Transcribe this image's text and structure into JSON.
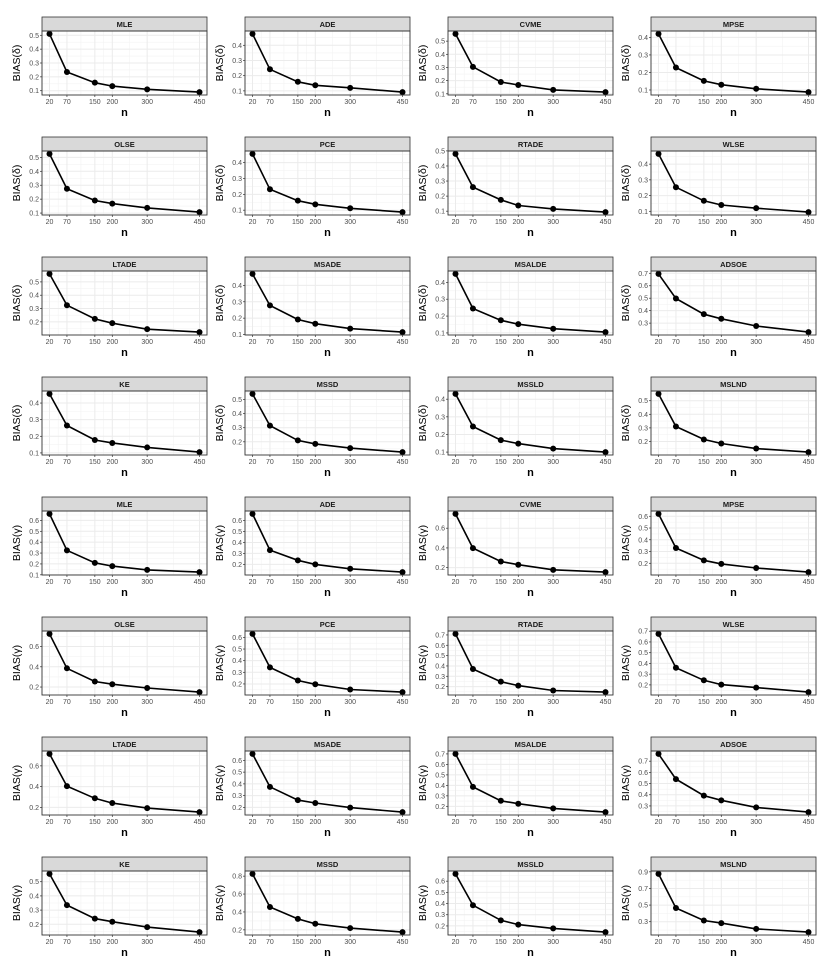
{
  "chart_data": {
    "type": "line",
    "layout": "facet-grid",
    "xlabel": "n",
    "x": [
      20,
      70,
      150,
      200,
      300,
      450
    ],
    "xticks": [
      20,
      70,
      150,
      200,
      300,
      450
    ],
    "grid": true,
    "panels": [
      {
        "title": "MLE",
        "ylabel": "BIAS(δ)",
        "yticks": [
          0.1,
          0.2,
          0.3,
          0.4,
          0.5
        ],
        "values": [
          0.51,
          0.235,
          0.158,
          0.133,
          0.11,
          0.09
        ]
      },
      {
        "title": "ADE",
        "ylabel": "BIAS(δ)",
        "yticks": [
          0.1,
          0.2,
          0.3,
          0.4
        ],
        "values": [
          0.475,
          0.242,
          0.16,
          0.137,
          0.12,
          0.092
        ]
      },
      {
        "title": "CVME",
        "ylabel": "BIAS(δ)",
        "yticks": [
          0.1,
          0.2,
          0.3,
          0.4,
          0.5
        ],
        "values": [
          0.555,
          0.305,
          0.19,
          0.167,
          0.13,
          0.113
        ]
      },
      {
        "title": "MPSE",
        "ylabel": "BIAS(δ)",
        "yticks": [
          0.1,
          0.2,
          0.3,
          0.4
        ],
        "values": [
          0.42,
          0.228,
          0.152,
          0.13,
          0.107,
          0.088
        ]
      },
      {
        "title": "OLSE",
        "ylabel": "BIAS(δ)",
        "yticks": [
          0.1,
          0.2,
          0.3,
          0.4,
          0.5
        ],
        "values": [
          0.525,
          0.275,
          0.19,
          0.168,
          0.137,
          0.107
        ]
      },
      {
        "title": "PCE",
        "ylabel": "BIAS(δ)",
        "yticks": [
          0.1,
          0.2,
          0.3,
          0.4
        ],
        "values": [
          0.455,
          0.232,
          0.16,
          0.137,
          0.112,
          0.088
        ]
      },
      {
        "title": "RTADE",
        "ylabel": "BIAS(δ)",
        "yticks": [
          0.1,
          0.2,
          0.3,
          0.4,
          0.5
        ],
        "values": [
          0.48,
          0.26,
          0.175,
          0.138,
          0.115,
          0.094
        ]
      },
      {
        "title": "WLSE",
        "ylabel": "BIAS(δ)",
        "yticks": [
          0.1,
          0.2,
          0.3,
          0.4
        ],
        "values": [
          0.465,
          0.253,
          0.167,
          0.14,
          0.12,
          0.095
        ]
      },
      {
        "title": "LTADE",
        "ylabel": "BIAS(δ)",
        "yticks": [
          0.2,
          0.3,
          0.4,
          0.5
        ],
        "values": [
          0.56,
          0.325,
          0.222,
          0.19,
          0.145,
          0.123
        ]
      },
      {
        "title": "MSADE",
        "ylabel": "BIAS(δ)",
        "yticks": [
          0.1,
          0.2,
          0.3,
          0.4
        ],
        "values": [
          0.47,
          0.278,
          0.192,
          0.166,
          0.136,
          0.115
        ]
      },
      {
        "title": "MSALDE",
        "ylabel": "BIAS(δ)",
        "yticks": [
          0.1,
          0.2,
          0.3,
          0.4
        ],
        "values": [
          0.45,
          0.245,
          0.175,
          0.152,
          0.125,
          0.105
        ]
      },
      {
        "title": "ADSOE",
        "ylabel": "BIAS(δ)",
        "yticks": [
          0.3,
          0.4,
          0.5,
          0.6,
          0.7
        ],
        "values": [
          0.695,
          0.498,
          0.372,
          0.335,
          0.277,
          0.228
        ]
      },
      {
        "title": "KE",
        "ylabel": "BIAS(δ)",
        "yticks": [
          0.1,
          0.2,
          0.3,
          0.4
        ],
        "values": [
          0.455,
          0.265,
          0.178,
          0.16,
          0.133,
          0.105
        ]
      },
      {
        "title": "MSSD",
        "ylabel": "BIAS(δ)",
        "yticks": [
          0.2,
          0.3,
          0.4,
          0.5
        ],
        "values": [
          0.54,
          0.315,
          0.21,
          0.185,
          0.155,
          0.127
        ]
      },
      {
        "title": "MSSLD",
        "ylabel": "BIAS(δ)",
        "yticks": [
          0.1,
          0.2,
          0.3,
          0.4
        ],
        "values": [
          0.43,
          0.245,
          0.168,
          0.148,
          0.12,
          0.1
        ]
      },
      {
        "title": "MSLND",
        "ylabel": "BIAS(δ)",
        "yticks": [
          0.2,
          0.3,
          0.4,
          0.5
        ],
        "values": [
          0.55,
          0.31,
          0.215,
          0.185,
          0.148,
          0.122
        ]
      },
      {
        "title": "MLE",
        "ylabel": "BIAS(γ)",
        "yticks": [
          0.1,
          0.2,
          0.3,
          0.4,
          0.5,
          0.6
        ],
        "values": [
          0.66,
          0.325,
          0.21,
          0.18,
          0.145,
          0.125
        ]
      },
      {
        "title": "ADE",
        "ylabel": "BIAS(γ)",
        "yticks": [
          0.2,
          0.3,
          0.4,
          0.5,
          0.6
        ],
        "values": [
          0.66,
          0.33,
          0.237,
          0.2,
          0.16,
          0.13
        ]
      },
      {
        "title": "CVME",
        "ylabel": "BIAS(γ)",
        "yticks": [
          0.2,
          0.4,
          0.6
        ],
        "values": [
          0.745,
          0.398,
          0.262,
          0.23,
          0.178,
          0.155
        ]
      },
      {
        "title": "MPSE",
        "ylabel": "BIAS(γ)",
        "yticks": [
          0.2,
          0.3,
          0.4,
          0.5,
          0.6
        ],
        "values": [
          0.62,
          0.33,
          0.225,
          0.195,
          0.16,
          0.125
        ]
      },
      {
        "title": "OLSE",
        "ylabel": "BIAS(γ)",
        "yticks": [
          0.2,
          0.4,
          0.6
        ],
        "values": [
          0.725,
          0.385,
          0.255,
          0.228,
          0.19,
          0.15
        ]
      },
      {
        "title": "PCE",
        "ylabel": "BIAS(γ)",
        "yticks": [
          0.2,
          0.3,
          0.4,
          0.5,
          0.6
        ],
        "values": [
          0.63,
          0.342,
          0.23,
          0.197,
          0.152,
          0.13
        ]
      },
      {
        "title": "RTADE",
        "ylabel": "BIAS(γ)",
        "yticks": [
          0.2,
          0.3,
          0.4,
          0.5,
          0.6,
          0.7
        ],
        "values": [
          0.71,
          0.37,
          0.248,
          0.21,
          0.162,
          0.147
        ]
      },
      {
        "title": "WLSE",
        "ylabel": "BIAS(γ)",
        "yticks": [
          0.2,
          0.3,
          0.4,
          0.5,
          0.6,
          0.7
        ],
        "values": [
          0.675,
          0.36,
          0.243,
          0.203,
          0.175,
          0.133
        ]
      },
      {
        "title": "LTADE",
        "ylabel": "BIAS(γ)",
        "yticks": [
          0.2,
          0.4,
          0.6
        ],
        "values": [
          0.715,
          0.405,
          0.288,
          0.242,
          0.193,
          0.155
        ]
      },
      {
        "title": "MSADE",
        "ylabel": "BIAS(γ)",
        "yticks": [
          0.2,
          0.3,
          0.4,
          0.5,
          0.6
        ],
        "values": [
          0.655,
          0.375,
          0.262,
          0.237,
          0.198,
          0.16
        ]
      },
      {
        "title": "MSALDE",
        "ylabel": "BIAS(γ)",
        "yticks": [
          0.2,
          0.3,
          0.4,
          0.5,
          0.6,
          0.7
        ],
        "values": [
          0.7,
          0.385,
          0.253,
          0.225,
          0.18,
          0.145
        ]
      },
      {
        "title": "ADSOE",
        "ylabel": "BIAS(γ)",
        "yticks": [
          0.3,
          0.4,
          0.5,
          0.6,
          0.7
        ],
        "values": [
          0.765,
          0.54,
          0.392,
          0.35,
          0.287,
          0.245
        ]
      },
      {
        "title": "KE",
        "ylabel": "BIAS(γ)",
        "yticks": [
          0.2,
          0.3,
          0.4,
          0.5
        ],
        "values": [
          0.555,
          0.335,
          0.24,
          0.218,
          0.18,
          0.145
        ]
      },
      {
        "title": "MSSD",
        "ylabel": "BIAS(γ)",
        "yticks": [
          0.2,
          0.4,
          0.6,
          0.8
        ],
        "values": [
          0.825,
          0.455,
          0.322,
          0.268,
          0.22,
          0.175
        ]
      },
      {
        "title": "MSSLD",
        "ylabel": "BIAS(γ)",
        "yticks": [
          0.2,
          0.3,
          0.4,
          0.5,
          0.6
        ],
        "values": [
          0.665,
          0.385,
          0.25,
          0.212,
          0.178,
          0.145
        ]
      },
      {
        "title": "MSLND",
        "ylabel": "BIAS(γ)",
        "yticks": [
          0.3,
          0.5,
          0.7,
          0.9
        ],
        "values": [
          0.875,
          0.465,
          0.315,
          0.283,
          0.213,
          0.175
        ]
      }
    ],
    "colors": {
      "line": "#000000",
      "strip": "#d9d9d9",
      "grid": "#ebebeb",
      "border": "#333333"
    }
  }
}
